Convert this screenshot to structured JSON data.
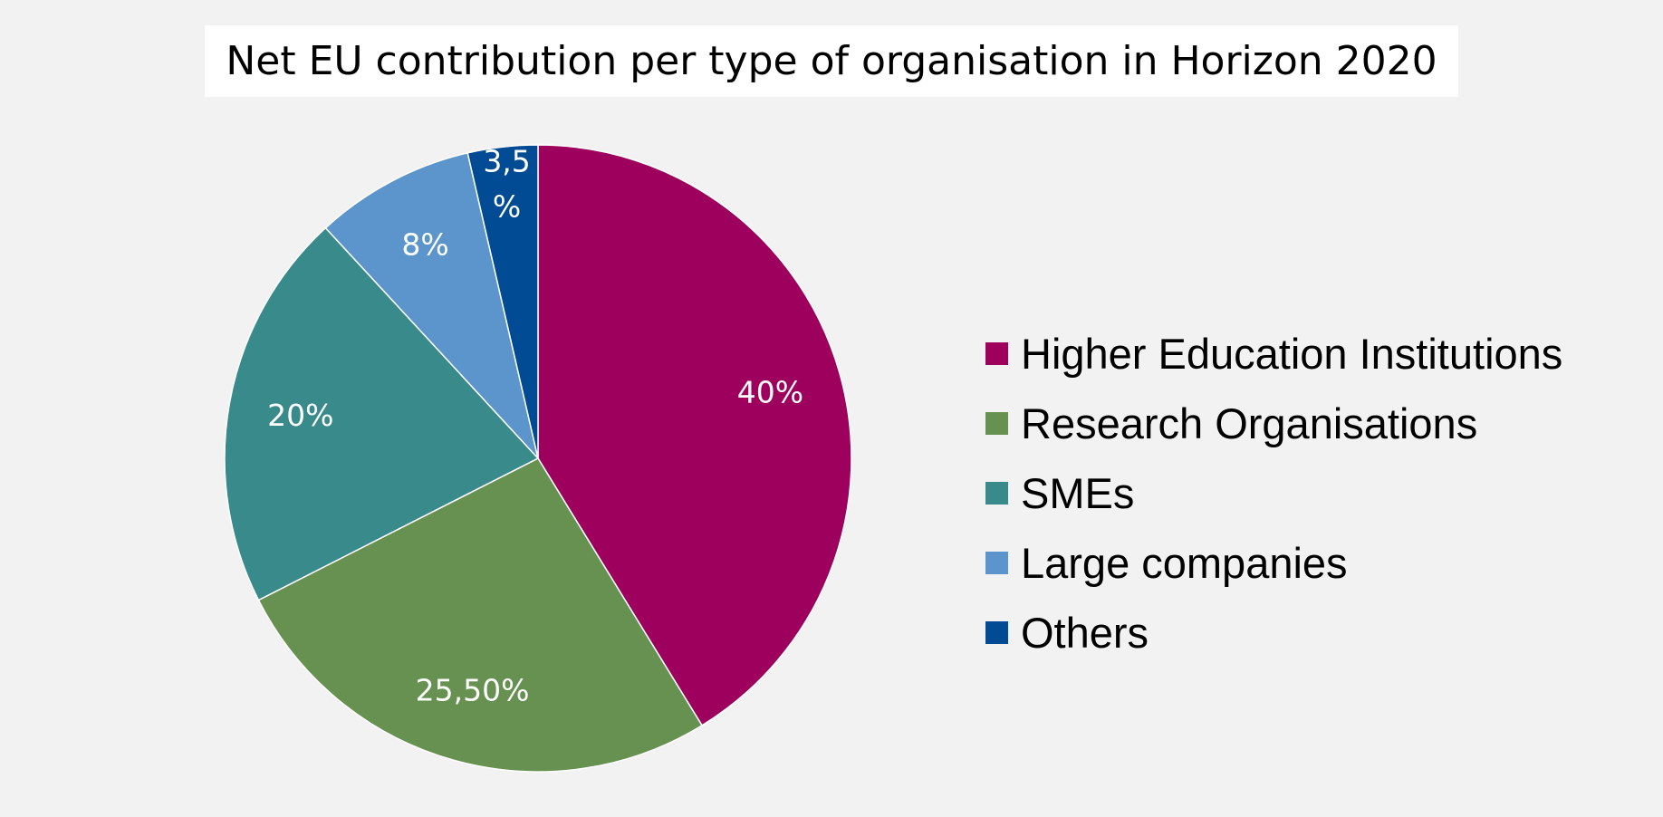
{
  "chart_data": {
    "type": "pie",
    "title": "Net EU contribution per type of organisation in Horizon 2020",
    "slices": [
      {
        "name": "Higher Education Institutions",
        "value": 40,
        "label": "40%",
        "color": "#9e005d"
      },
      {
        "name": "Research Organisations",
        "value": 25.5,
        "label": "25,50%",
        "color": "#679151"
      },
      {
        "name": "SMEs",
        "value": 20,
        "label": "20%",
        "color": "#388a8b"
      },
      {
        "name": "Large companies",
        "value": 8,
        "label": "8%",
        "color": "#5b95cb"
      },
      {
        "name": "Others",
        "value": 3.5,
        "label_lines": [
          "3,5",
          "%"
        ],
        "color": "#004b93"
      }
    ],
    "legend_position": "right"
  }
}
